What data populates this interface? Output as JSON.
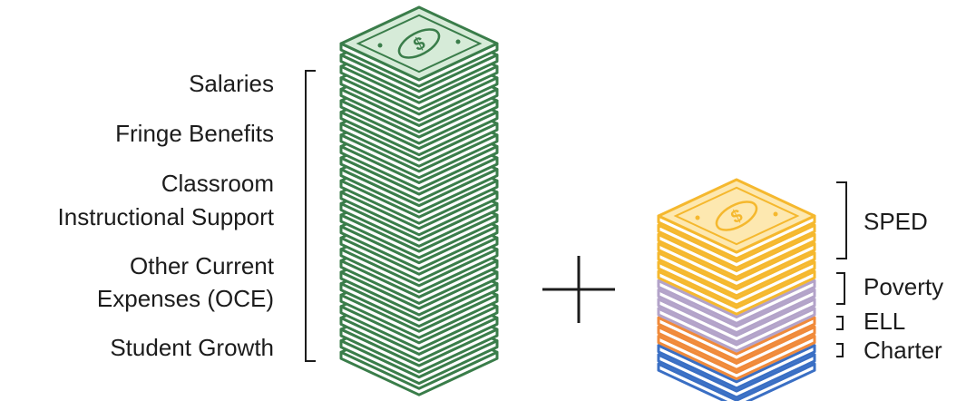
{
  "base_components": {
    "items": [
      "Salaries",
      "Fringe Benefits",
      "Classroom",
      "Instructional Support",
      "Other Current",
      "Expenses (OCE)",
      "Student Growth"
    ]
  },
  "operator": "+",
  "supplements": {
    "sped": "SPED",
    "poverty": "Poverty",
    "ell": "ELL",
    "charter": "Charter"
  },
  "colors": {
    "base_stack": "#3a7d4a",
    "base_stack_fill": "#d6ebd8",
    "sped": "#f5b82e",
    "poverty": "#b3a3c9",
    "ell": "#f08a3a",
    "charter": "#3a6fc4"
  },
  "icons": [
    "dollar-bill-icon",
    "coin-icon"
  ]
}
